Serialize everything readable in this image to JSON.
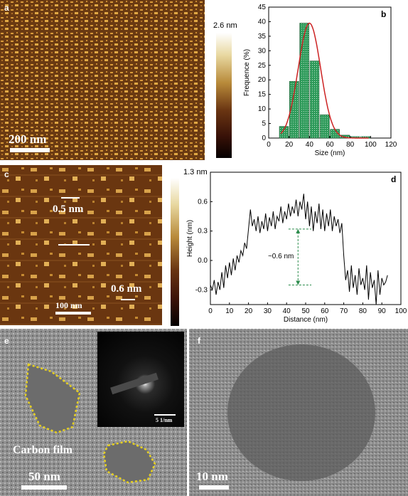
{
  "panels": {
    "a": {
      "letter": "a",
      "scale_label": "200 nm",
      "colorbar_label": "2.6 nm"
    },
    "b": {
      "letter": "b"
    },
    "c": {
      "letter": "c",
      "scale_label": "100 nm",
      "colorbar_label": "1.3 nm",
      "annot_top": "0.5 nm",
      "annot_bottom": "0.6 nm"
    },
    "d": {
      "letter": "d",
      "annotation": "~0.6 nm"
    },
    "e": {
      "letter": "e",
      "scale_label": "50 nm",
      "film_label": "Carbon film",
      "inset_scale": "5 1/nm"
    },
    "f": {
      "letter": "f",
      "scale_label": "10 nm"
    }
  },
  "colors": {
    "bar_fill": "#2e9a5a",
    "fit_line": "#cc2222",
    "annot_arrow": "#2a8a4a",
    "annot_text": "#8b1a1a",
    "outline": "#e6d020"
  },
  "chart_data": [
    {
      "panel": "b",
      "type": "bar",
      "xlabel": "Size (nm)",
      "ylabel": "Frequence (%)",
      "xlim": [
        0,
        120
      ],
      "ylim": [
        0,
        45
      ],
      "xticks": [
        0,
        20,
        40,
        60,
        80,
        100,
        120
      ],
      "yticks": [
        0,
        5,
        10,
        15,
        20,
        25,
        30,
        35,
        40,
        45
      ],
      "x": [
        15,
        25,
        35,
        45,
        55,
        65,
        75,
        85,
        95
      ],
      "values": [
        4,
        19.5,
        39.5,
        26.5,
        8,
        3,
        1,
        0.5,
        0.5
      ],
      "fit": {
        "type": "gaussian",
        "center": 40,
        "peak": 39.5
      }
    },
    {
      "panel": "d",
      "type": "line",
      "xlabel": "Distance (nm)",
      "ylabel": "Height (nm)",
      "xlim": [
        0,
        100
      ],
      "ylim": [
        -0.45,
        0.9
      ],
      "xticks": [
        0,
        10,
        20,
        30,
        40,
        50,
        60,
        70,
        80,
        90,
        100
      ],
      "yticks": [
        -0.3,
        0.0,
        0.3,
        0.6
      ],
      "x": [
        0,
        1,
        2,
        3,
        4,
        5,
        6,
        7,
        8,
        9,
        10,
        11,
        12,
        13,
        14,
        15,
        16,
        17,
        18,
        19,
        20,
        21,
        22,
        23,
        24,
        25,
        26,
        27,
        28,
        29,
        30,
        31,
        32,
        33,
        34,
        35,
        36,
        37,
        38,
        39,
        40,
        41,
        42,
        43,
        44,
        45,
        46,
        47,
        48,
        49,
        50,
        51,
        52,
        53,
        54,
        55,
        56,
        57,
        58,
        59,
        60,
        61,
        62,
        63,
        64,
        65,
        66,
        67,
        68,
        69,
        70,
        71,
        72,
        73,
        74,
        75,
        76,
        77,
        78,
        79,
        80,
        81,
        82,
        83,
        84,
        85,
        86,
        87,
        88,
        89,
        90,
        91,
        92,
        93
      ],
      "y": [
        -0.25,
        -0.3,
        -0.2,
        -0.35,
        -0.22,
        -0.3,
        -0.12,
        -0.28,
        -0.05,
        -0.18,
        -0.02,
        -0.15,
        0.02,
        -0.1,
        0.05,
        -0.02,
        0.1,
        0.05,
        0.18,
        0.12,
        0.32,
        0.52,
        0.35,
        0.42,
        0.3,
        0.45,
        0.28,
        0.4,
        0.32,
        0.48,
        0.3,
        0.44,
        0.35,
        0.5,
        0.32,
        0.45,
        0.4,
        0.55,
        0.38,
        0.5,
        0.42,
        0.58,
        0.45,
        0.55,
        0.48,
        0.62,
        0.45,
        0.6,
        0.52,
        0.68,
        0.42,
        0.6,
        0.35,
        0.55,
        0.3,
        0.5,
        0.38,
        0.58,
        0.32,
        0.52,
        0.3,
        0.48,
        0.35,
        0.52,
        0.3,
        0.45,
        0.35,
        0.42,
        0.28,
        0.38,
        0.05,
        -0.2,
        -0.1,
        -0.32,
        -0.05,
        -0.28,
        -0.15,
        -0.35,
        -0.08,
        -0.25,
        -0.18,
        -0.3,
        -0.05,
        -0.4,
        -0.12,
        -0.28,
        -0.2,
        -0.45,
        -0.1,
        -0.35,
        -0.18,
        -0.25,
        -0.22,
        -0.15
      ]
    }
  ]
}
